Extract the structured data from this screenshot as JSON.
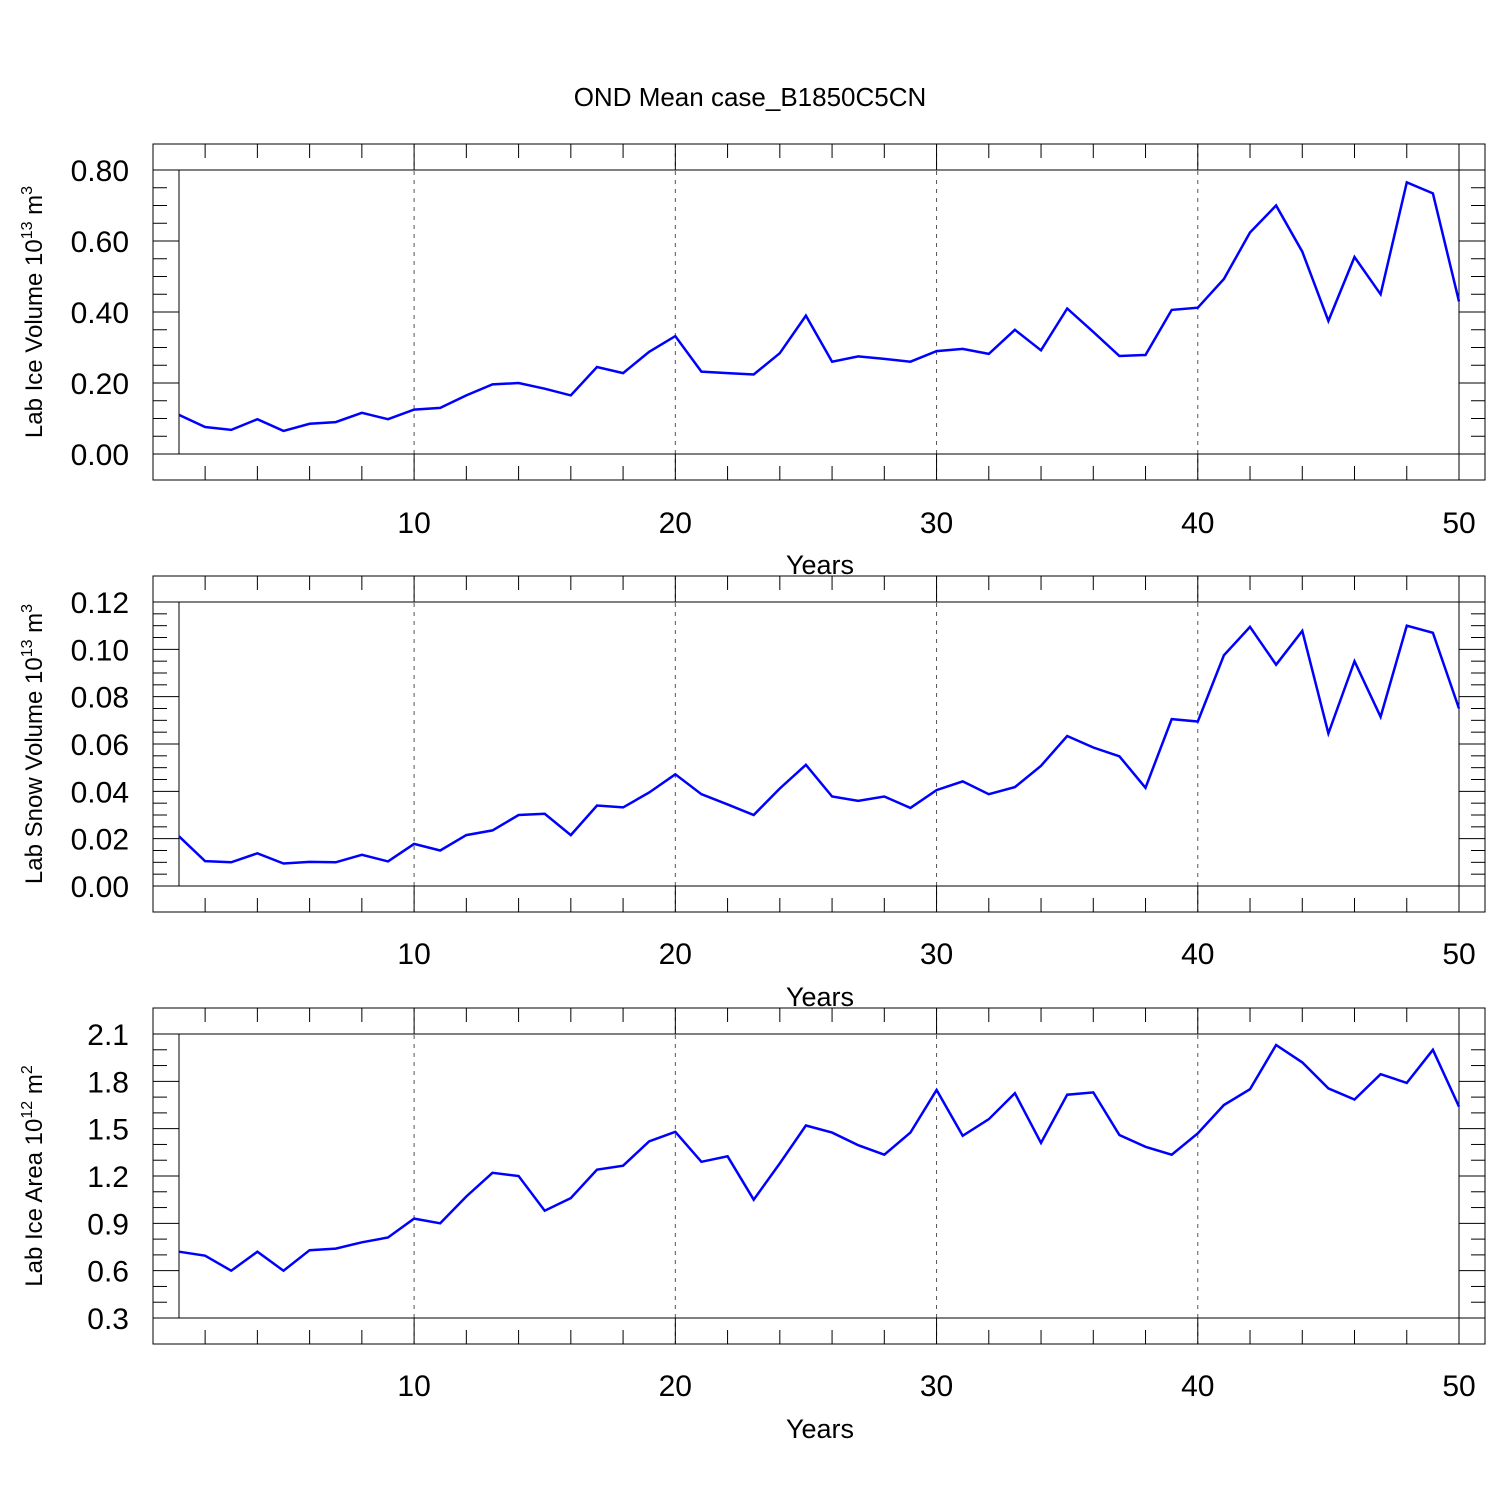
{
  "title": "OND Mean case_B1850C5CN",
  "line_color": "#0000ff",
  "chart_data": [
    {
      "type": "line",
      "xlabel": "Years",
      "ylabel": "Lab Ice Volume 10",
      "ylabel_exp": "13",
      "ylabel_unit": " m",
      "ylabel_unit_exp": "3",
      "xlim": [
        1,
        50
      ],
      "ylim": [
        0,
        0.8
      ],
      "x_ticks": [
        10,
        20,
        30,
        40,
        50
      ],
      "x_tick_labels": [
        "10",
        "20",
        "30",
        "40",
        "50"
      ],
      "y_ticks": [
        0,
        0.2,
        0.4,
        0.6,
        0.8
      ],
      "y_tick_labels": [
        "0.00",
        "0.20",
        "0.40",
        "0.60",
        "0.80"
      ],
      "y_minor_step": 0.05,
      "grid": "vertical dashed at major x ticks",
      "x": [
        1,
        2,
        3,
        4,
        5,
        6,
        7,
        8,
        9,
        10,
        11,
        12,
        13,
        14,
        15,
        16,
        17,
        18,
        19,
        20,
        21,
        22,
        23,
        24,
        25,
        26,
        27,
        28,
        29,
        30,
        31,
        32,
        33,
        34,
        35,
        36,
        37,
        38,
        39,
        40,
        41,
        42,
        43,
        44,
        45,
        46,
        47,
        48,
        49,
        50
      ],
      "values": [
        0.11,
        0.076,
        0.068,
        0.098,
        0.065,
        0.085,
        0.09,
        0.116,
        0.098,
        0.125,
        0.13,
        0.165,
        0.196,
        0.2,
        0.184,
        0.165,
        0.245,
        0.228,
        0.288,
        0.332,
        0.232,
        0.228,
        0.224,
        0.284,
        0.39,
        0.26,
        0.275,
        0.268,
        0.26,
        0.29,
        0.296,
        0.282,
        0.35,
        0.292,
        0.41,
        0.344,
        0.276,
        0.279,
        0.406,
        0.412,
        0.493,
        0.624,
        0.7,
        0.57,
        0.375,
        0.555,
        0.45,
        0.765,
        0.734,
        0.43
      ]
    },
    {
      "type": "line",
      "xlabel": "Years",
      "ylabel": "Lab Snow Volume 10",
      "ylabel_exp": "13",
      "ylabel_unit": " m",
      "ylabel_unit_exp": "3",
      "xlim": [
        1,
        50
      ],
      "ylim": [
        0,
        0.12
      ],
      "x_ticks": [
        10,
        20,
        30,
        40,
        50
      ],
      "x_tick_labels": [
        "10",
        "20",
        "30",
        "40",
        "50"
      ],
      "y_ticks": [
        0,
        0.02,
        0.04,
        0.06,
        0.08,
        0.1,
        0.12
      ],
      "y_tick_labels": [
        "0.00",
        "0.02",
        "0.04",
        "0.06",
        "0.08",
        "0.10",
        "0.12"
      ],
      "y_minor_step": 0.005,
      "grid": "vertical dashed at major x ticks",
      "x": [
        1,
        2,
        3,
        4,
        5,
        6,
        7,
        8,
        9,
        10,
        11,
        12,
        13,
        14,
        15,
        16,
        17,
        18,
        19,
        20,
        21,
        22,
        23,
        24,
        25,
        26,
        27,
        28,
        29,
        30,
        31,
        32,
        33,
        34,
        35,
        36,
        37,
        38,
        39,
        40,
        41,
        42,
        43,
        44,
        45,
        46,
        47,
        48,
        49,
        50
      ],
      "values": [
        0.021,
        0.0105,
        0.01,
        0.0138,
        0.0095,
        0.0102,
        0.01,
        0.0132,
        0.0104,
        0.0178,
        0.015,
        0.0215,
        0.0235,
        0.03,
        0.0305,
        0.0215,
        0.034,
        0.0332,
        0.0395,
        0.0472,
        0.0388,
        0.0345,
        0.03,
        0.0412,
        0.0512,
        0.0378,
        0.036,
        0.0378,
        0.033,
        0.0405,
        0.0442,
        0.0388,
        0.0418,
        0.0508,
        0.0634,
        0.0585,
        0.0548,
        0.0415,
        0.0705,
        0.0695,
        0.0975,
        0.1095,
        0.0935,
        0.1078,
        0.0645,
        0.095,
        0.0715,
        0.11,
        0.107,
        0.075
      ]
    },
    {
      "type": "line",
      "xlabel": "Years",
      "ylabel": "Lab Ice Area 10",
      "ylabel_exp": "12",
      "ylabel_unit": " m",
      "ylabel_unit_exp": "2",
      "xlim": [
        1,
        50
      ],
      "ylim": [
        0.3,
        2.1
      ],
      "x_ticks": [
        10,
        20,
        30,
        40,
        50
      ],
      "x_tick_labels": [
        "10",
        "20",
        "30",
        "40",
        "50"
      ],
      "y_ticks": [
        0.3,
        0.6,
        0.9,
        1.2,
        1.5,
        1.8,
        2.1
      ],
      "y_tick_labels": [
        "0.3",
        "0.6",
        "0.9",
        "1.2",
        "1.5",
        "1.8",
        "2.1"
      ],
      "y_minor_step": 0.1,
      "grid": "vertical dashed at major x ticks",
      "x": [
        1,
        2,
        3,
        4,
        5,
        6,
        7,
        8,
        9,
        10,
        11,
        12,
        13,
        14,
        15,
        16,
        17,
        18,
        19,
        20,
        21,
        22,
        23,
        24,
        25,
        26,
        27,
        28,
        29,
        30,
        31,
        32,
        33,
        34,
        35,
        36,
        37,
        38,
        39,
        40,
        41,
        42,
        43,
        44,
        45,
        46,
        47,
        48,
        49,
        50
      ],
      "values": [
        0.72,
        0.695,
        0.6,
        0.72,
        0.6,
        0.73,
        0.74,
        0.78,
        0.81,
        0.93,
        0.9,
        1.07,
        1.22,
        1.2,
        0.98,
        1.06,
        1.24,
        1.265,
        1.42,
        1.48,
        1.29,
        1.325,
        1.05,
        1.28,
        1.52,
        1.475,
        1.395,
        1.335,
        1.475,
        1.745,
        1.455,
        1.56,
        1.725,
        1.41,
        1.715,
        1.73,
        1.46,
        1.385,
        1.335,
        1.47,
        1.65,
        1.75,
        2.03,
        1.92,
        1.755,
        1.685,
        1.845,
        1.79,
        2.0,
        1.64
      ]
    }
  ]
}
